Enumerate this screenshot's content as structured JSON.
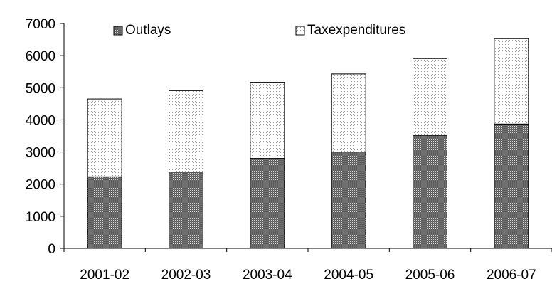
{
  "chart_data": {
    "type": "bar",
    "stacked": true,
    "categories": [
      "2001-02",
      "2002-03",
      "2003-04",
      "2004-05",
      "2005-06",
      "2006-07"
    ],
    "series": [
      {
        "name": "Outlays",
        "values": [
          2230,
          2380,
          2800,
          3000,
          3520,
          3870
        ],
        "pattern": "dense-dots",
        "color": "#6a6a6a"
      },
      {
        "name": "Taxexpenditures",
        "values": [
          2420,
          2530,
          2370,
          2430,
          2390,
          2660
        ],
        "pattern": "sparse-dots",
        "color": "#ffffff"
      }
    ],
    "ylim": [
      0,
      7000
    ],
    "yticks": [
      0,
      1000,
      2000,
      3000,
      4000,
      5000,
      6000,
      7000
    ],
    "grid": false,
    "legend_position": "top"
  }
}
